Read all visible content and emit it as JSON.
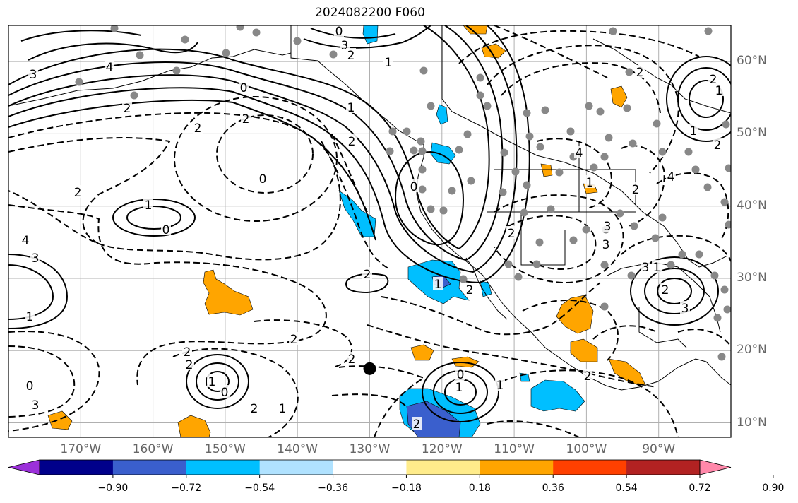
{
  "title": "2024082200 F060",
  "map": {
    "lon_range": [
      -180,
      -80
    ],
    "lat_range": [
      8,
      65
    ],
    "grid_lon": [
      -180,
      -170,
      -160,
      -150,
      -140,
      -130,
      -120,
      -110,
      -100,
      -90,
      -80
    ],
    "grid_lat": [
      10,
      20,
      30,
      40,
      50,
      60
    ],
    "lon_labels": [
      "170°W",
      "160°W",
      "150°W",
      "140°W",
      "130°W",
      "120°W",
      "110°W",
      "100°W",
      "90°W"
    ],
    "lat_labels": [
      "10°N",
      "20°N",
      "30°N",
      "40°N",
      "50°N",
      "60°N"
    ],
    "contour_labels": [
      "3",
      "4",
      "2",
      "3",
      "1",
      "0",
      "2",
      "2",
      "2",
      "4",
      "1",
      "0",
      "2",
      "3",
      "2",
      "0",
      "-1",
      "0",
      "-2",
      "1",
      "2",
      "-2",
      "2",
      "-1",
      "0",
      "1",
      "-2",
      "-1",
      "2",
      "2",
      "0",
      "3",
      "2",
      "1",
      "0",
      "-1",
      "2",
      "0",
      "-3",
      "-1",
      "-3",
      "4",
      "2",
      "3",
      "1",
      "2",
      "1",
      "2",
      "-2",
      "-4",
      "-1",
      "2",
      "-3",
      "-2"
    ],
    "marker": {
      "lon": -130,
      "lat": 17.5,
      "color": "#000000"
    }
  },
  "colorbar": {
    "colors": [
      "#9b30d9",
      "#00008b",
      "#3a5fcd",
      "#00bfff",
      "#b0e2ff",
      "#ffffff",
      "#ffec8b",
      "#ffa500",
      "#ff4000",
      "#b22222",
      "#ff88aa"
    ],
    "ticks": [
      "−0.90",
      "−0.72",
      "−0.54",
      "−0.36",
      "−0.18",
      "0.18",
      "0.36",
      "0.54",
      "0.72",
      "0.90"
    ]
  },
  "icons": [
    "colorbar-extend-left-triangle",
    "colorbar-extend-right-triangle"
  ]
}
